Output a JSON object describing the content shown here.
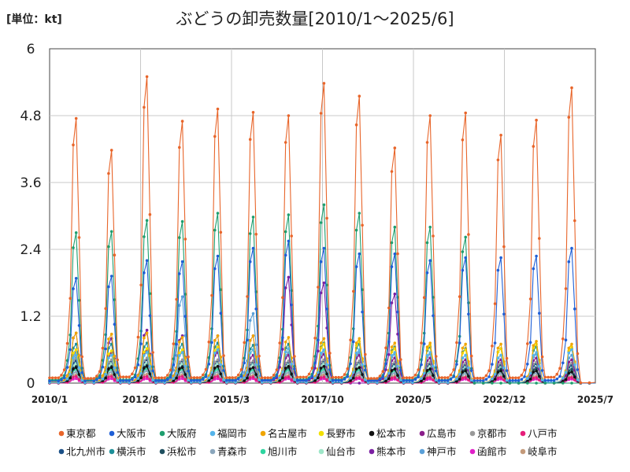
{
  "unit_label": "[単位：kt]",
  "chart_data": {
    "type": "line",
    "title": "ぶどうの卸売数量[2010/1〜2025/6]",
    "ylim": [
      0,
      6
    ],
    "y_ticks": [
      "0",
      "1.2",
      "2.4",
      "3.6",
      "4.8",
      "6"
    ],
    "x_ticks": [
      "2010/1",
      "2012/8",
      "2015/3",
      "2017/10",
      "2020/5",
      "2022/12",
      "2025/7"
    ],
    "grid": true,
    "legend_position": "bottom",
    "start_year": 2010,
    "months": 186,
    "series": [
      {
        "name": "東京都",
        "color": "#e8652a",
        "peaks": [
          4.75,
          4.18,
          5.5,
          4.7,
          4.92,
          4.86,
          4.8,
          5.38,
          5.15,
          4.22,
          4.8,
          4.85,
          4.45,
          4.72,
          5.3,
          0.28
        ]
      },
      {
        "name": "大阪市",
        "color": "#1f5fd6",
        "peaks": [
          1.88,
          1.92,
          2.2,
          2.18,
          2.28,
          2.42,
          2.55,
          2.42,
          2.32,
          2.32,
          2.2,
          2.25,
          2.25,
          2.28,
          2.42,
          0.08
        ]
      },
      {
        "name": "大阪府",
        "color": "#1e9e6e",
        "peaks": [
          2.7,
          2.72,
          2.92,
          2.9,
          3.05,
          2.98,
          3.02,
          3.2,
          3.05,
          2.8,
          2.8,
          2.62,
          0,
          0,
          0,
          0
        ]
      },
      {
        "name": "福岡市",
        "color": "#55b4ea",
        "peaks": [
          0.5,
          0.5,
          0.55,
          0.55,
          0.6,
          0.6,
          0.62,
          0.6,
          0.6,
          0.55,
          0.55,
          0.5,
          0.5,
          0.55,
          0.6,
          0.03
        ]
      },
      {
        "name": "名古屋市",
        "color": "#f0a500",
        "peaks": [
          0.9,
          0.88,
          0.9,
          0.82,
          0.85,
          0.85,
          0.82,
          0.8,
          0.8,
          0.72,
          0.72,
          0.7,
          0.7,
          0.75,
          0.7,
          0.03
        ]
      },
      {
        "name": "長野市",
        "color": "#f2e000",
        "peaks": [
          0.6,
          0.58,
          0.62,
          0.6,
          0.65,
          0.6,
          0.62,
          0.7,
          0.75,
          0.62,
          0.68,
          0.6,
          0.62,
          0.7,
          0.65,
          0.02
        ]
      },
      {
        "name": "松本市",
        "color": "#111111",
        "peaks": [
          0.28,
          0.28,
          0.3,
          0.28,
          0.3,
          0.28,
          0.3,
          0.3,
          0.28,
          0.25,
          0.25,
          0.22,
          0.22,
          0.22,
          0.2,
          0.01
        ]
      },
      {
        "name": "広島市",
        "color": "#8a1e8a",
        "peaks": [
          0.6,
          0.55,
          0.6,
          0.55,
          0.55,
          0.5,
          0.5,
          0.52,
          0.5,
          0.45,
          0.45,
          0.42,
          0.42,
          0.45,
          0.42,
          0.02
        ]
      },
      {
        "name": "京都市",
        "color": "#999999",
        "peaks": [
          0.45,
          0.42,
          0.45,
          0.42,
          0.42,
          0.4,
          0.4,
          0.42,
          0.4,
          0.38,
          0.38,
          0.36,
          0.36,
          0.38,
          0.36,
          0.02
        ]
      },
      {
        "name": "八戸市",
        "color": "#e61e7a",
        "peaks": [
          0.12,
          0.12,
          0.12,
          0.12,
          0.12,
          0.11,
          0.11,
          0.11,
          0.1,
          0.1,
          0.1,
          0.1,
          0.1,
          0.1,
          0.1,
          0.01
        ]
      },
      {
        "name": "北九州市",
        "color": "#1a4f86",
        "peaks": [
          0.4,
          0.4,
          0.42,
          0.4,
          0.4,
          0.38,
          0.38,
          0.4,
          0.38,
          0.35,
          0.35,
          0.33,
          0.33,
          0.35,
          0.32,
          0.02
        ]
      },
      {
        "name": "横浜市",
        "color": "#1d8f98",
        "peaks": [
          0.7,
          0.7,
          0.72,
          0.7,
          0.72,
          0.68,
          0.7,
          0.72,
          0.7,
          0.65,
          0.65,
          0.62,
          0.62,
          0.65,
          0.62,
          0.03
        ]
      },
      {
        "name": "浜松市",
        "color": "#1f4f5f",
        "peaks": [
          0.3,
          0.3,
          0.32,
          0.3,
          0.3,
          0.28,
          0.28,
          0.3,
          0.28,
          0.26,
          0.26,
          0.25,
          0.25,
          0.26,
          0.25,
          0.01
        ]
      },
      {
        "name": "青森市",
        "color": "#8aa6bc",
        "peaks": [
          0.2,
          0.2,
          0.22,
          0.2,
          0.2,
          0.19,
          0.19,
          0.2,
          0.19,
          0.18,
          0.18,
          0.17,
          0.17,
          0.18,
          0.17,
          0.01
        ]
      },
      {
        "name": "旭川市",
        "color": "#2ed5a0",
        "peaks": [
          0.25,
          0.25,
          0.26,
          0.25,
          0.25,
          0.24,
          0.24,
          0.25,
          0.24,
          0.22,
          0.22,
          0.21,
          0.21,
          0.22,
          0.21,
          0.01
        ]
      },
      {
        "name": "仙台市",
        "color": "#9ee6c8",
        "peaks": [
          0.35,
          0.35,
          0.36,
          0.35,
          0.35,
          0.34,
          0.34,
          0.35,
          0.34,
          0.32,
          0.32,
          0.3,
          0.3,
          0.32,
          0.3,
          0.01
        ]
      },
      {
        "name": "熊本市",
        "color": "#7b1fa2",
        "peaks": [
          0.9,
          0.8,
          0.95,
          0.85,
          0.85,
          0.85,
          1.9,
          1.8,
          0.0,
          1.6,
          0.35,
          0.3,
          0.3,
          0.3,
          0.3,
          0.01
        ]
      },
      {
        "name": "神戸市",
        "color": "#5aa0d8",
        "peaks": [
          0.55,
          0.55,
          0.58,
          1.55,
          0.58,
          1.25,
          0.55,
          0.58,
          0.55,
          0.52,
          0.52,
          0.5,
          0.5,
          0.52,
          0.5,
          0.02
        ]
      },
      {
        "name": "函館市",
        "color": "#e020c8",
        "peaks": [
          0.08,
          0.08,
          0.08,
          0.08,
          0.08,
          0.08,
          0.08,
          0.08,
          0.08,
          0.07,
          0.07,
          0.07,
          0.07,
          0.07,
          0.07,
          0.01
        ]
      },
      {
        "name": "岐阜市",
        "color": "#c49a7a",
        "peaks": [
          0.15,
          0.15,
          0.16,
          0.15,
          0.15,
          0.14,
          0.14,
          0.15,
          0.14,
          0.13,
          0.13,
          0.12,
          0.12,
          0.13,
          0.12,
          0.01
        ]
      }
    ]
  }
}
